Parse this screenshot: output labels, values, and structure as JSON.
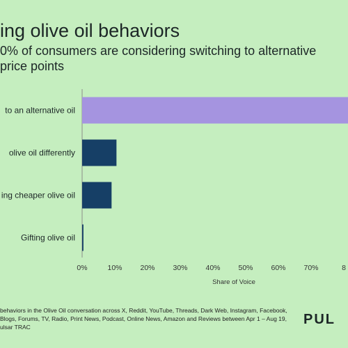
{
  "header": {
    "title": "ing olive oil behaviors",
    "subtitle_lines": [
      "0% of consumers are considering switching to alternative",
      "price points"
    ]
  },
  "chart_data": {
    "type": "bar",
    "orientation": "horizontal",
    "categories": [
      "to an alternative oil",
      "olive oil differently",
      "ing cheaper olive oil",
      "Gifting olive oil"
    ],
    "values": [
      82,
      10.5,
      9,
      0.4
    ],
    "bar_colors": [
      "#a594e0",
      "#163f66",
      "#163f66",
      "#163f66"
    ],
    "xlabel": "Share of Voice",
    "xticks": [
      "0%",
      "10%",
      "20%",
      "30%",
      "40%",
      "50%",
      "60%",
      "70%",
      "8"
    ],
    "xlim": [
      0,
      80
    ],
    "grid": false
  },
  "footer": {
    "note_lines": [
      "behaviors in the Olive Oil conversation across X, Reddit, YouTube, Threads, Dark Web, Instagram, Facebook,",
      "Blogs, Forums, TV, Radio, Print News, Podcast, Online News, Amazon and Reviews between Apr 1 – Aug 19,",
      "ulsar TRAC"
    ],
    "brand": "PUL"
  }
}
